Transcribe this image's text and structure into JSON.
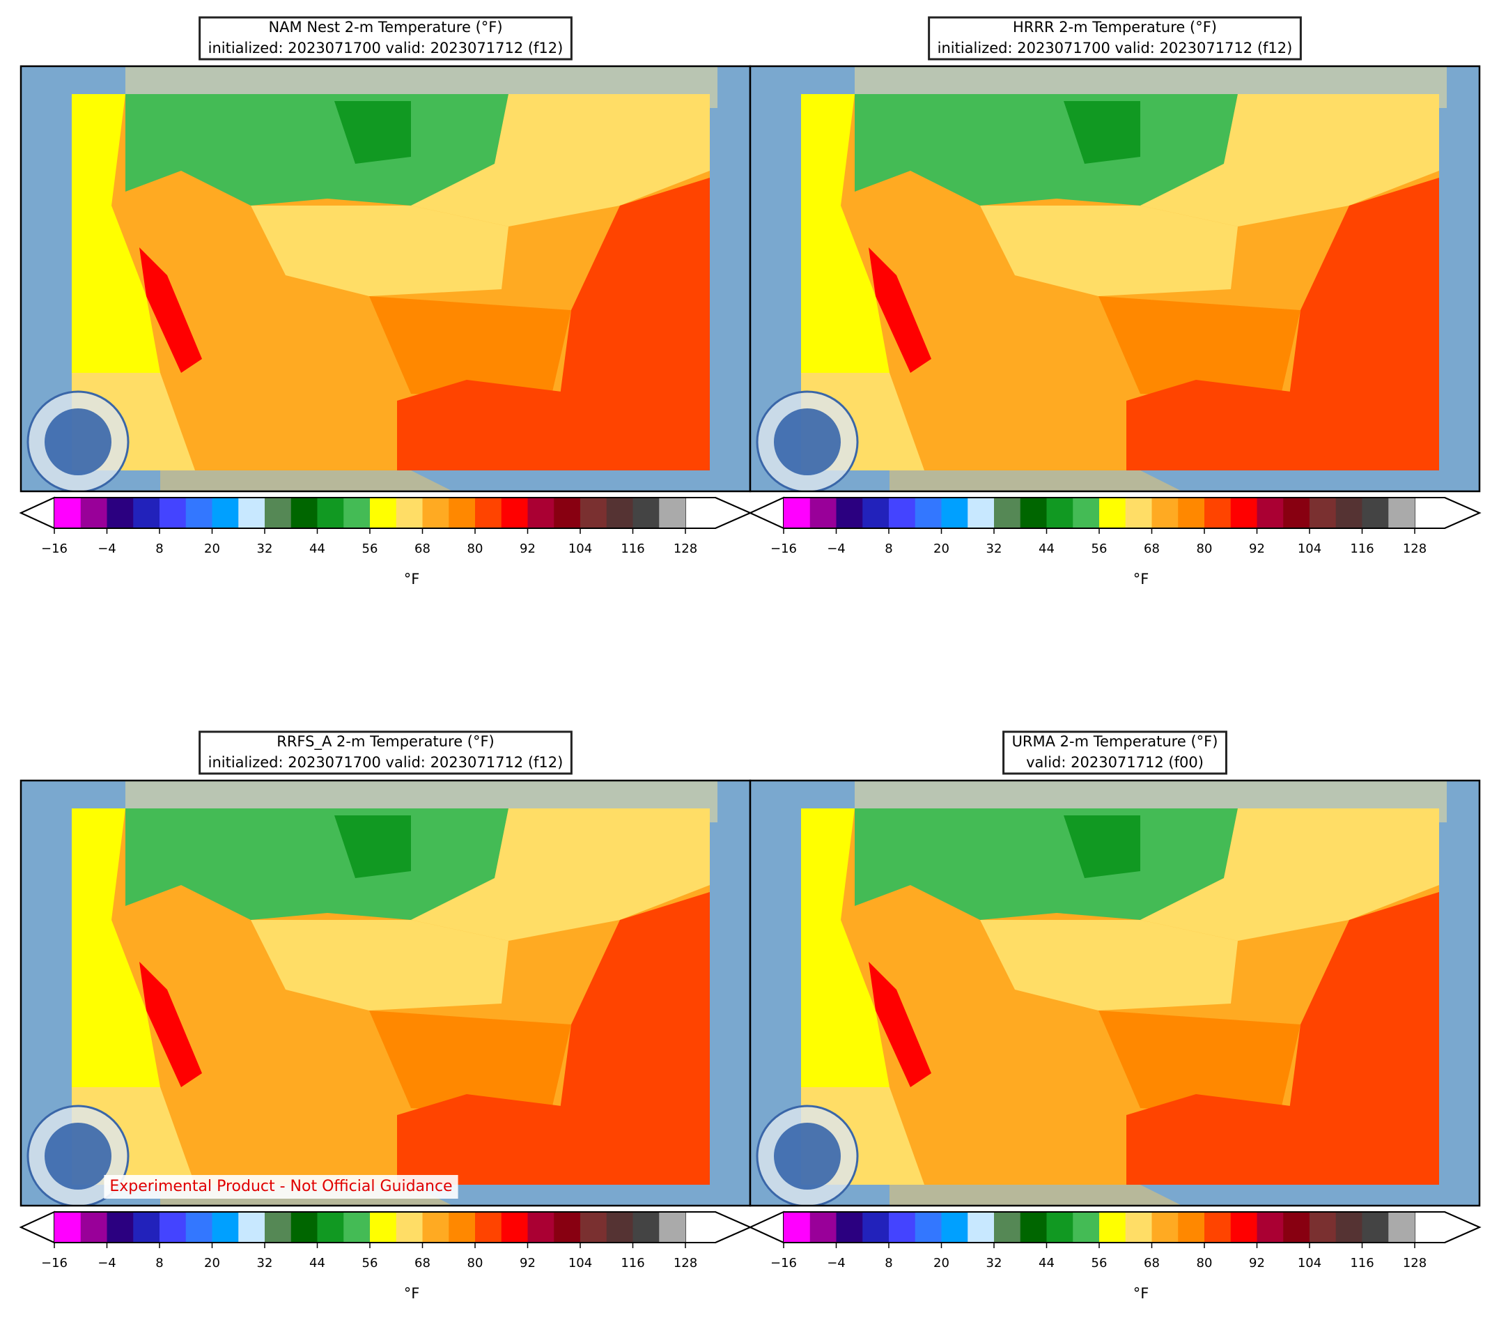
{
  "panels": [
    {
      "title": [
        "NAM Nest 2-m Temperature (°F)",
        "initialized: 2023071700 valid: 2023071712 (f12)"
      ]
    },
    {
      "title": [
        "HRRR 2-m Temperature (°F)",
        "initialized: 2023071700 valid: 2023071712 (f12)"
      ]
    },
    {
      "title": [
        "RRFS_A 2-m Temperature (°F)",
        "initialized: 2023071700 valid: 2023071712 (f12)"
      ],
      "note": "Experimental Product - Not Official Guidance"
    },
    {
      "title": [
        "URMA 2-m Temperature (°F)",
        "valid: 2023071712 (f00)"
      ]
    }
  ],
  "colorbar": {
    "label": "°F",
    "range": [
      -16,
      128
    ],
    "colors": [
      "#ff00ff",
      "#990099",
      "#2b0080",
      "#2222bb",
      "#4444ff",
      "#3377ff",
      "#00a0ff",
      "#c8e8ff",
      "#558855",
      "#006600",
      "#119922",
      "#44bb55",
      "#ffff00",
      "#ffdd66",
      "#ffaa22",
      "#ff8800",
      "#ff4400",
      "#ff0000",
      "#aa0033",
      "#880011",
      "#7a3030",
      "#553333",
      "#444444",
      "#aaaaaa"
    ],
    "extend_color": "#ffffff",
    "ticks": [
      {
        "value": -16,
        "label": "−16"
      },
      {
        "value": -4,
        "label": "−4"
      },
      8,
      20,
      32,
      44,
      56,
      68,
      80,
      92,
      104,
      116,
      128
    ]
  }
}
